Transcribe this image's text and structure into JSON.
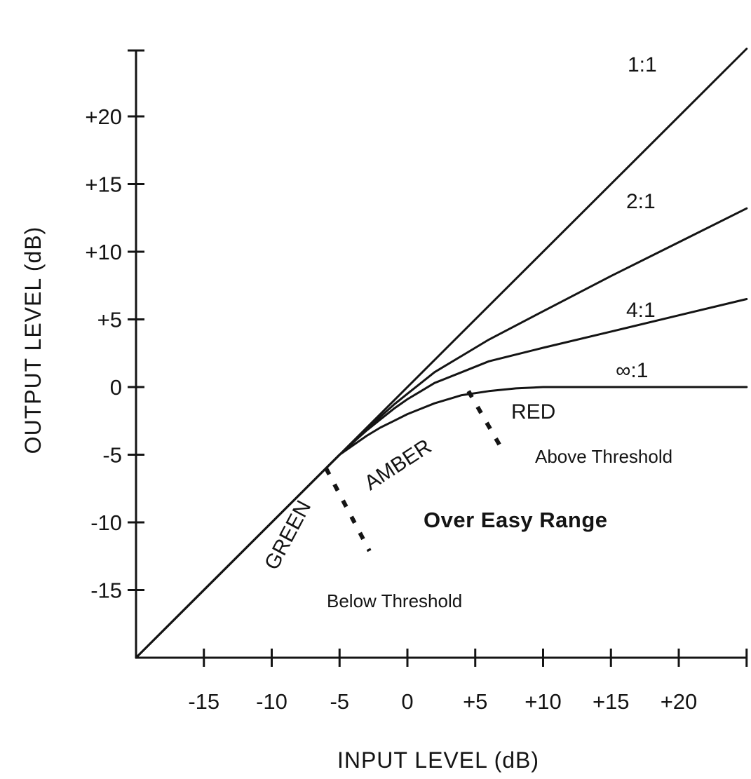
{
  "chart_data": {
    "type": "line",
    "title": "",
    "xlabel": "INPUT LEVEL (dB)",
    "ylabel": "OUTPUT LEVEL (dB)",
    "xlim": [
      -20,
      25
    ],
    "ylim": [
      -20,
      25
    ],
    "x_ticks": [
      -15,
      -10,
      -5,
      0,
      5,
      10,
      15,
      20
    ],
    "x_tick_labels": [
      "-15",
      "-10",
      "-5",
      "0",
      "+5",
      "+10",
      "+15",
      "+20"
    ],
    "y_ticks": [
      -15,
      -10,
      -5,
      0,
      5,
      10,
      15,
      20
    ],
    "y_tick_labels": [
      "-15",
      "-10",
      "-5",
      "0",
      "+5",
      "+10",
      "+15",
      "+20"
    ],
    "grid": false,
    "legend": "none",
    "series": [
      {
        "name": "1:1",
        "x": [
          -20,
          25
        ],
        "y": [
          -20,
          25
        ]
      },
      {
        "name": "2:1",
        "x": [
          -20,
          -6,
          -5,
          -4,
          -3,
          -2,
          -1,
          0,
          1,
          2,
          4,
          6,
          10,
          15,
          20,
          25
        ],
        "y": [
          -20,
          -6,
          -5,
          -4.1,
          -3.1,
          -2.2,
          -1.3,
          -0.5,
          0.3,
          1.1,
          2.3,
          3.5,
          5.6,
          8.2,
          10.7,
          13.2
        ]
      },
      {
        "name": "4:1",
        "x": [
          -20,
          -6,
          -5,
          -4,
          -3,
          -2,
          -1,
          0,
          1,
          2,
          4,
          6,
          10,
          15,
          20,
          25
        ],
        "y": [
          -20,
          -6,
          -5,
          -4.1,
          -3.2,
          -2.4,
          -1.6,
          -0.9,
          -0.3,
          0.3,
          1.1,
          1.9,
          2.9,
          4.1,
          5.3,
          6.5
        ]
      },
      {
        "name": "∞:1",
        "x": [
          -20,
          -6,
          -5,
          -4,
          -3,
          -2,
          -1,
          0,
          1,
          2,
          3,
          4,
          6,
          8,
          10,
          15,
          20,
          25
        ],
        "y": [
          -20,
          -6,
          -5,
          -4.3,
          -3.6,
          -3,
          -2.5,
          -2,
          -1.6,
          -1.2,
          -0.9,
          -0.6,
          -0.3,
          -0.1,
          0,
          0,
          0,
          0
        ]
      }
    ],
    "annotations": {
      "zones": [
        "GREEN",
        "AMBER",
        "RED"
      ],
      "boundaries": [
        {
          "x": -6,
          "y": -6
        },
        {
          "x": 4.5,
          "y": -0.3
        }
      ],
      "regions": [
        "Below Threshold",
        "Over Easy Range",
        "Above Threshold"
      ]
    },
    "colors": {
      "ink": "#141414",
      "background": "#ffffff"
    }
  }
}
